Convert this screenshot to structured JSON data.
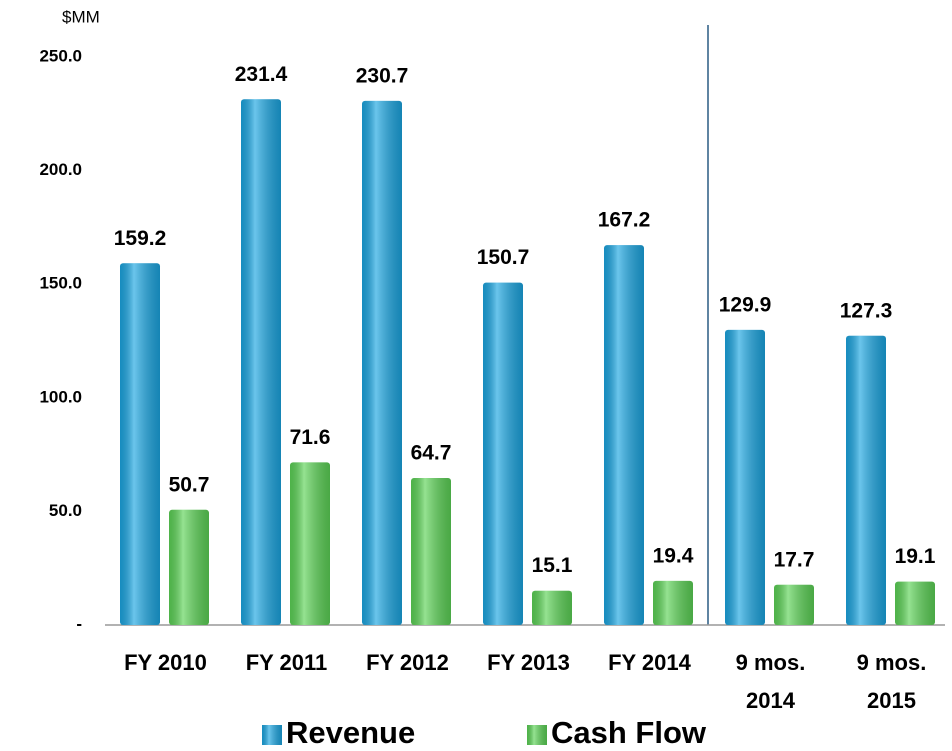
{
  "chart_data": {
    "type": "bar",
    "y_label": "$MM",
    "categories": [
      "FY 2010",
      "FY 2011",
      "FY 2012",
      "FY 2013",
      "FY 2014",
      "9 mos. 2014",
      "9 mos. 2015"
    ],
    "series": [
      {
        "name": "Revenue",
        "color": "#1ba6e2",
        "values": [
          159.2,
          231.4,
          230.7,
          150.7,
          167.2,
          129.9,
          127.3
        ]
      },
      {
        "name": "Cash Flow",
        "color": "#5cd356",
        "values": [
          50.7,
          71.6,
          64.7,
          15.1,
          19.4,
          17.7,
          19.1
        ]
      }
    ],
    "ylim": [
      0,
      250
    ],
    "yticks": [
      {
        "value": 0,
        "label": "-"
      },
      {
        "value": 50,
        "label": "50.0"
      },
      {
        "value": 100,
        "label": "100.0"
      },
      {
        "value": 150,
        "label": "150.0"
      },
      {
        "value": 200,
        "label": "200.0"
      },
      {
        "value": 250,
        "label": "250.0"
      }
    ],
    "grid": false
  }
}
